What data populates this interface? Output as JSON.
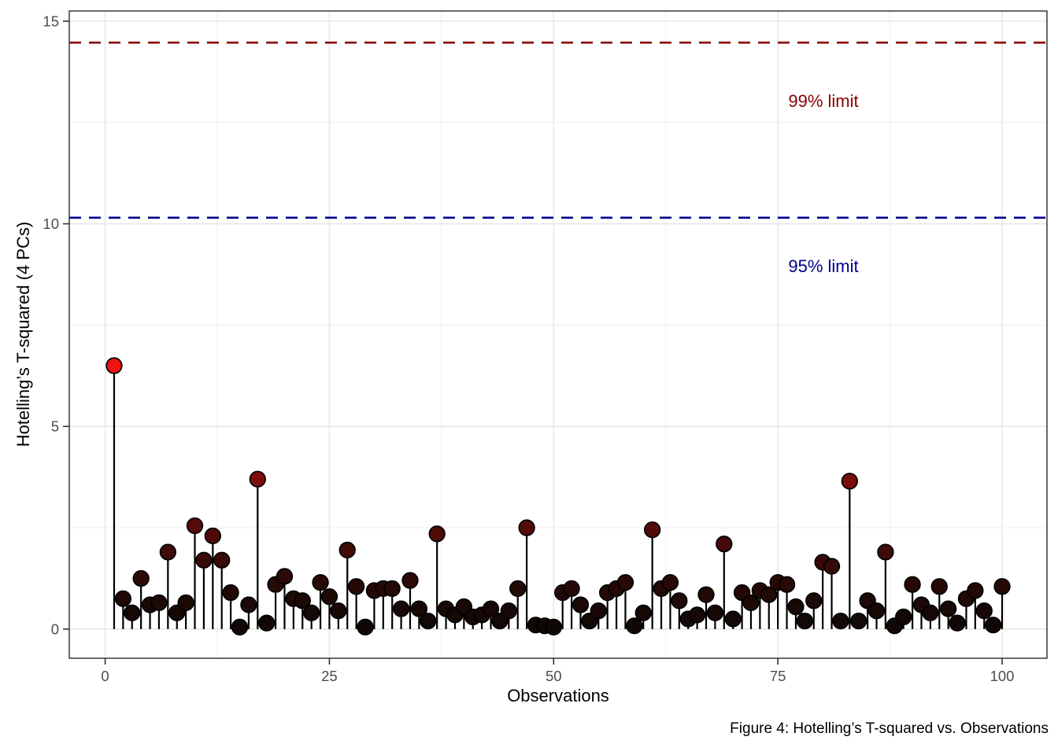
{
  "figure": {
    "caption": "Figure 4: Hotelling’s T-squared vs. Observations"
  },
  "chart_data": {
    "type": "scatter",
    "style": "lollipop-stem",
    "title": "",
    "xlabel": "Observations",
    "ylabel": "Hotelling’s T-squared (4 PCs)",
    "x_start": 1,
    "values": [
      6.5,
      0.75,
      0.4,
      1.25,
      0.6,
      0.65,
      1.9,
      0.4,
      0.65,
      2.55,
      1.7,
      2.3,
      1.7,
      0.9,
      0.05,
      0.6,
      3.7,
      0.15,
      1.1,
      1.3,
      0.75,
      0.7,
      0.4,
      1.15,
      0.8,
      0.45,
      1.95,
      1.05,
      0.05,
      0.95,
      1.0,
      1.0,
      0.5,
      1.2,
      0.5,
      0.2,
      2.35,
      0.5,
      0.35,
      0.55,
      0.3,
      0.35,
      0.5,
      0.2,
      0.45,
      1.0,
      2.5,
      0.1,
      0.08,
      0.05,
      0.9,
      1.0,
      0.6,
      0.2,
      0.45,
      0.9,
      1.0,
      1.15,
      0.08,
      0.4,
      2.45,
      1.0,
      1.15,
      0.7,
      0.25,
      0.35,
      0.85,
      0.4,
      2.1,
      0.25,
      0.9,
      0.65,
      0.95,
      0.85,
      1.15,
      1.1,
      0.55,
      0.2,
      0.7,
      1.65,
      1.55,
      0.2,
      3.65,
      0.2,
      0.7,
      0.45,
      1.9,
      0.08,
      0.3,
      1.1,
      0.6,
      0.4,
      1.05,
      0.5,
      0.15,
      0.75,
      0.95,
      0.45,
      0.1,
      1.05
    ],
    "xlim": [
      -4.0,
      105.0
    ],
    "ylim": [
      -0.72,
      15.25
    ],
    "x_ticks": [
      0,
      25,
      50,
      75,
      100
    ],
    "x_tick_labels": [
      "0",
      "25",
      "50",
      "75",
      "100"
    ],
    "x_minor_breaks": [
      12.5,
      37.5,
      62.5,
      87.5
    ],
    "y_ticks": [
      0,
      5,
      10,
      15
    ],
    "y_tick_labels": [
      "0",
      "5",
      "10",
      "15"
    ],
    "y_minor_breaks": [
      2.5,
      7.5,
      12.5
    ],
    "grid": true,
    "limits": [
      {
        "label": "99% limit",
        "value": 14.47,
        "color": "#8B0000"
      },
      {
        "label": "95% limit",
        "value": 10.15,
        "color": "#00008B"
      }
    ],
    "point_color_scale": {
      "low": "#0f0805",
      "high": "#ee1411"
    },
    "colors": {
      "stem": "#000000",
      "point_stroke": "#000000",
      "grid_major": "#e8e8e8",
      "grid_minor": "#ededed",
      "panel_border": "#2b2b2b",
      "tick": "#333333",
      "tick_label": "#4d4d4d",
      "background": "#ffffff"
    }
  }
}
